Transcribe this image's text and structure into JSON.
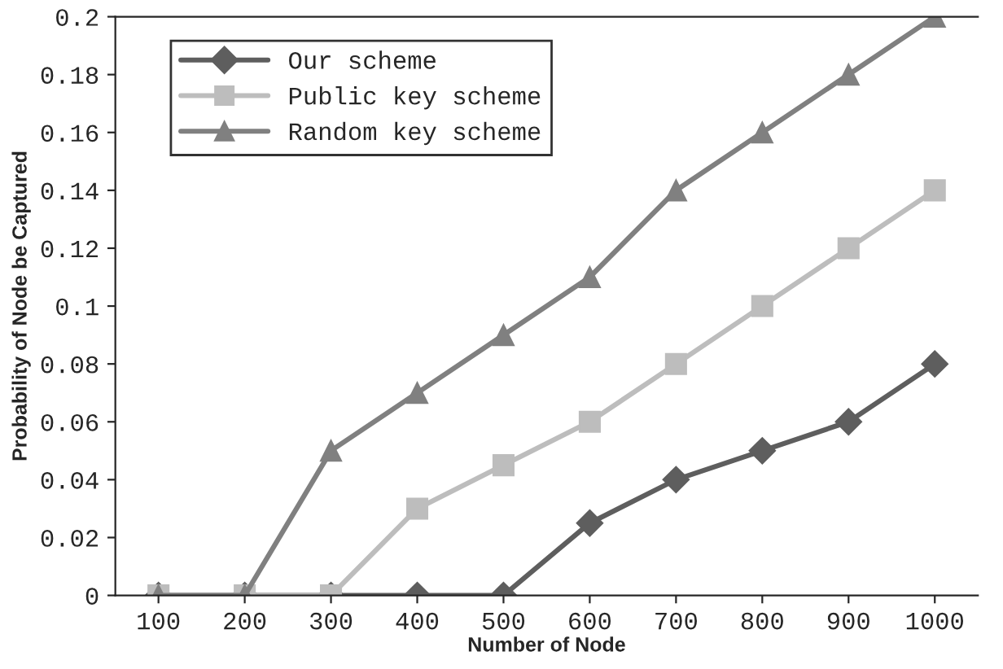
{
  "chart_data": {
    "type": "line",
    "xlabel": "Number of Node",
    "ylabel": "Probability of Node be Captured",
    "categories": [
      "100",
      "200",
      "300",
      "400",
      "500",
      "600",
      "700",
      "800",
      "900",
      "1000"
    ],
    "series": [
      {
        "name": "Our scheme",
        "color": "#5e5e5e",
        "marker": "diamond",
        "values": [
          0,
          0,
          0,
          0,
          0,
          0.025,
          0.04,
          0.05,
          0.06,
          0.08
        ]
      },
      {
        "name": "Public key scheme",
        "color": "#bdbdbd",
        "marker": "square",
        "values": [
          0,
          0,
          0,
          0.03,
          0.045,
          0.06,
          0.08,
          0.1,
          0.12,
          0.14
        ]
      },
      {
        "name": "Random key scheme",
        "color": "#808080",
        "marker": "triangle",
        "values": [
          0,
          0,
          0.05,
          0.07,
          0.09,
          0.11,
          0.14,
          0.16,
          0.18,
          0.2
        ]
      }
    ],
    "ylim": [
      0,
      0.2
    ],
    "yticks": [
      0,
      {
        "value": 0.02,
        "label": "0.02"
      },
      {
        "value": 0.04,
        "label": "0.04"
      },
      {
        "value": 0.06,
        "label": "0.06"
      },
      {
        "value": 0.08,
        "label": "0.08"
      },
      {
        "value": 0.1,
        "label": "0.1"
      },
      {
        "value": 0.12,
        "label": "0.12"
      },
      {
        "value": 0.14,
        "label": "0.14"
      },
      {
        "value": 0.16,
        "label": "0.16"
      },
      {
        "value": 0.18,
        "label": "0.18"
      },
      {
        "value": 0.2,
        "label": "0.2"
      }
    ],
    "grid": false,
    "legend": "top left",
    "line_style": "solid"
  }
}
